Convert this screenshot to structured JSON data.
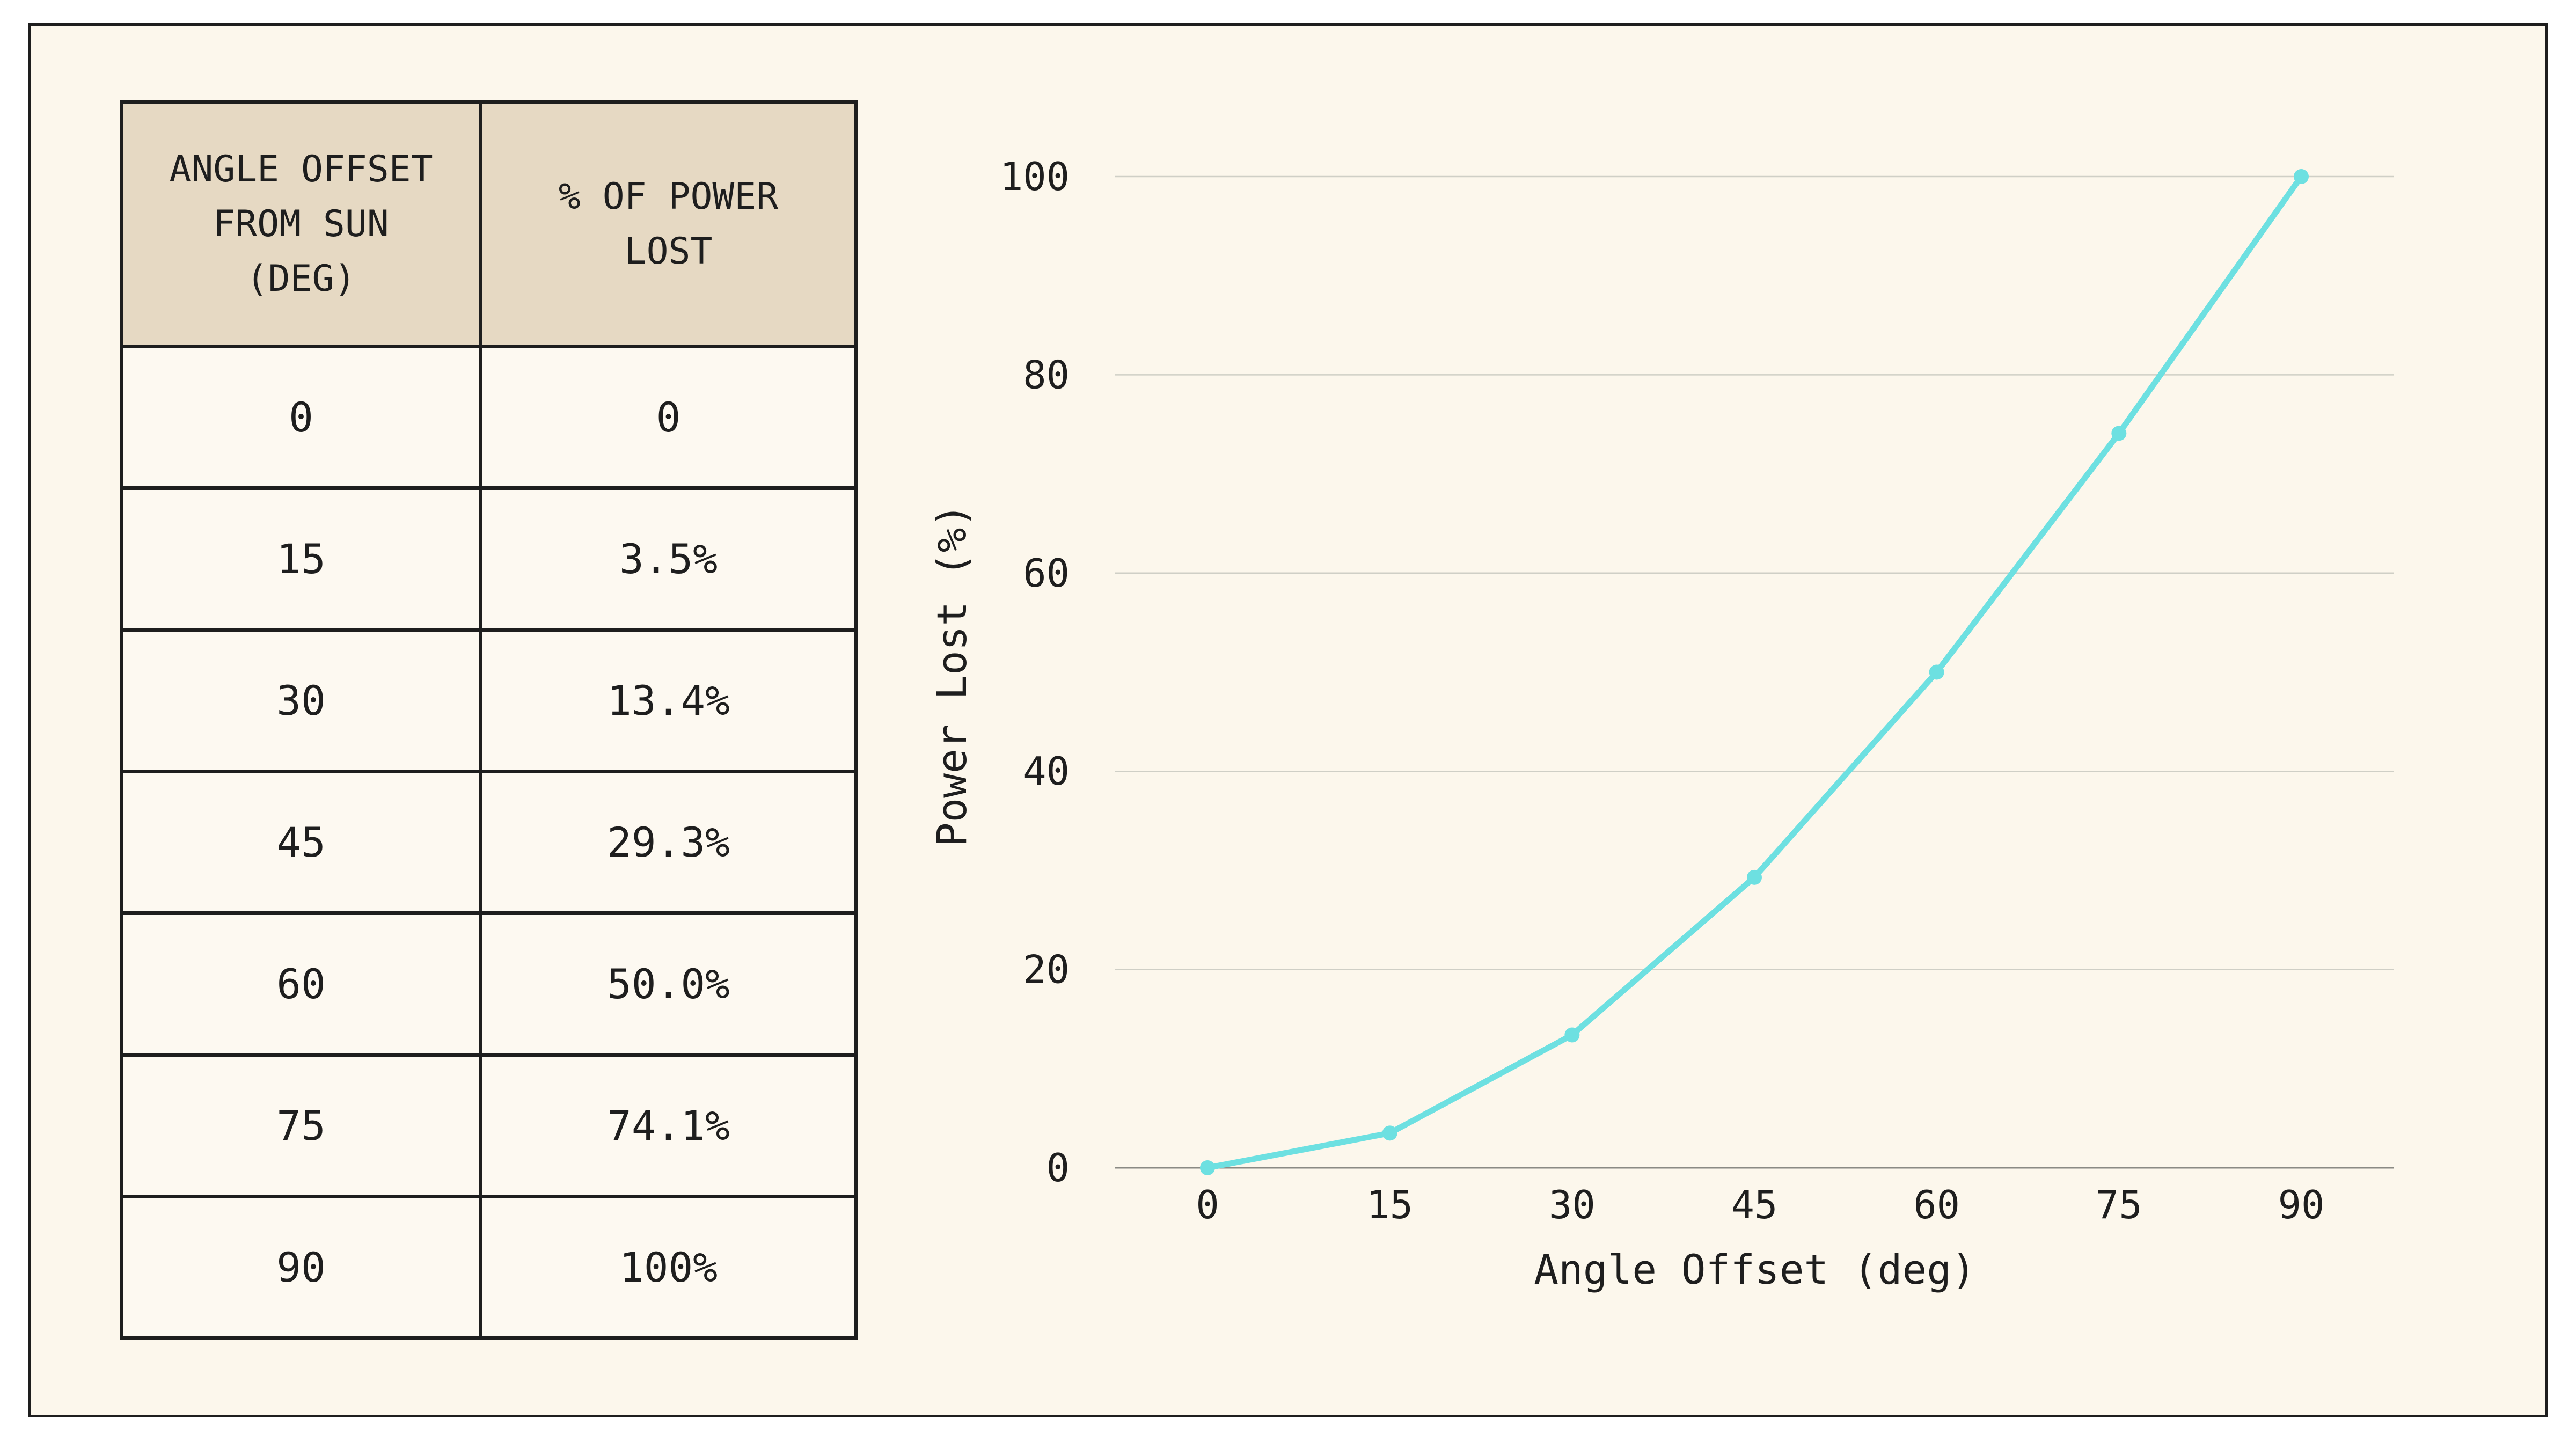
{
  "table": {
    "headers": [
      "ANGLE OFFSET\nFROM SUN\n(DEG)",
      "% OF POWER\nLOST"
    ],
    "rows": [
      [
        "0",
        "0"
      ],
      [
        "15",
        "3.5%"
      ],
      [
        "30",
        "13.4%"
      ],
      [
        "45",
        "29.3%"
      ],
      [
        "60",
        "50.0%"
      ],
      [
        "75",
        "74.1%"
      ],
      [
        "90",
        "100%"
      ]
    ]
  },
  "chart_data": {
    "type": "line",
    "x": [
      0,
      15,
      30,
      45,
      60,
      75,
      90
    ],
    "series": [
      {
        "values": [
          0,
          3.5,
          13.4,
          29.3,
          50.0,
          74.1,
          100
        ]
      }
    ],
    "xlabel": "Angle Offset (deg)",
    "ylabel": "Power Lost (%)",
    "xticks": [
      "0",
      "15",
      "30",
      "45",
      "60",
      "75",
      "90"
    ],
    "yticks": [
      "0",
      "20",
      "40",
      "60",
      "80",
      "100"
    ],
    "ylim": [
      0,
      100
    ],
    "grid": "horizontal",
    "line_color": "#6de0e1"
  },
  "colors": {
    "background": "#fcf7ec",
    "header_fill": "#e6d9c3",
    "border": "#1e1e1e",
    "gridline": "#cfcfc6"
  }
}
